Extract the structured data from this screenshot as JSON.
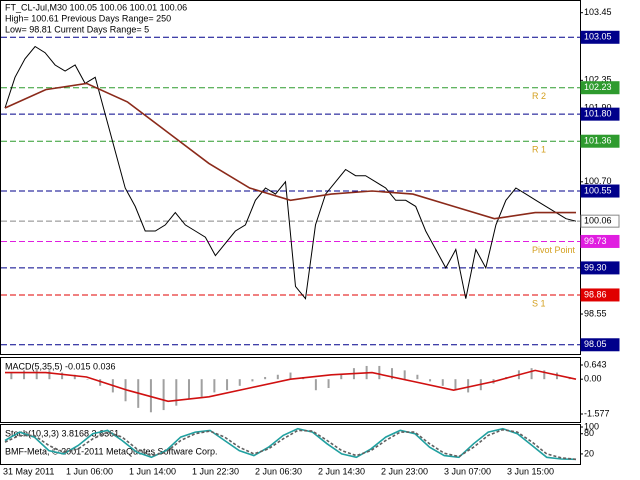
{
  "chart_data": [
    {
      "type": "line",
      "title": "FT_CL-Jul,M30  100.05 100.06 100.01 100.06",
      "subtitles": [
        "High= 100.61   Previous Days Range= 250",
        "Low= 98.81   Current Days Range= 5"
      ],
      "ylim": [
        97.9,
        103.64
      ],
      "yticks": [
        103.45,
        102.35,
        {
          "value": 101.9,
          "label": "101.90"
        },
        {
          "value": 100.7,
          "label": "100.70"
        },
        98.55
      ],
      "levels": [
        {
          "value": 103.05,
          "color": "#00008b"
        },
        {
          "value": 102.23,
          "color": "#2e9b2e",
          "name": "R 2"
        },
        {
          "value": 101.8,
          "label": "101.80",
          "color": "#00008b"
        },
        {
          "value": 101.36,
          "color": "#2e9b2e",
          "name": "R 1"
        },
        {
          "value": 100.55,
          "color": "#00008b"
        },
        {
          "value": 100.06,
          "color": "#ffffff",
          "text_color": "#000000"
        },
        {
          "value": 99.73,
          "color": "#e01ee0",
          "name": "Pivot Point"
        },
        {
          "value": 99.3,
          "label": "99.30",
          "color": "#00008b"
        },
        {
          "value": 98.86,
          "color": "#e00000",
          "name": "S 1"
        },
        {
          "value": 98.05,
          "color": "#00008b"
        }
      ],
      "series": [
        {
          "color": "#000000",
          "values": [
            101.9,
            102.4,
            102.7,
            102.9,
            102.8,
            102.6,
            102.5,
            102.6,
            102.3,
            102.4,
            101.8,
            101.2,
            100.6,
            100.3,
            99.9,
            99.9,
            100.0,
            100.2,
            100.0,
            99.9,
            99.8,
            99.5,
            99.7,
            99.9,
            100.0,
            100.4,
            100.6,
            100.5,
            100.7,
            99.0,
            98.8,
            100.0,
            100.5,
            100.7,
            100.9,
            100.8,
            100.8,
            100.7,
            100.6,
            100.4,
            100.4,
            100.3,
            99.9,
            99.6,
            99.3,
            99.6,
            98.8,
            99.6,
            99.3,
            100.0,
            100.4,
            100.6,
            100.5,
            100.4,
            100.3,
            100.2,
            100.1,
            100.06
          ]
        },
        {
          "color": "#8b2a1a",
          "values": [
            101.9,
            102.2,
            102.3,
            102.0,
            101.5,
            101.0,
            100.6,
            100.4,
            100.5,
            100.55,
            100.5,
            100.3,
            100.1,
            100.2,
            100.2
          ]
        }
      ]
    },
    {
      "type": "macd",
      "title": "MACD(5,35,5) -0.015 0.036",
      "ylim": [
        -1.94,
        0.96
      ],
      "yticks": [
        0.643,
        {
          "value": 0,
          "label": "0.00"
        },
        -1.577
      ],
      "series": [
        {
          "type": "bar",
          "color": "#a0a0a0",
          "values": [
            0.3,
            0.4,
            0.5,
            0.4,
            0.3,
            0.2,
            0.0,
            -0.3,
            -0.6,
            -1.0,
            -1.3,
            -1.5,
            -1.4,
            -1.2,
            -0.9,
            -0.8,
            -0.6,
            -0.5,
            -0.3,
            -0.1,
            0.1,
            0.2,
            0.3,
            0.1,
            -0.5,
            -0.4,
            0.2,
            0.5,
            0.6,
            0.6,
            0.5,
            0.4,
            0.2,
            -0.1,
            -0.3,
            -0.5,
            -0.6,
            -0.5,
            -0.2,
            0.1,
            0.4,
            0.5,
            0.4,
            0.3,
            0.1
          ]
        },
        {
          "type": "line",
          "color": "#d01010",
          "values": [
            0.3,
            0.3,
            0.1,
            -0.5,
            -1.0,
            -0.8,
            -0.4,
            0.0,
            0.2,
            0.3,
            -0.1,
            -0.5,
            -0.1,
            0.4,
            0.0
          ]
        }
      ]
    },
    {
      "type": "line",
      "title": "Stoch(10,3,3) 3.8168 3.6361",
      "annotation": "BMF-Meta, © 2001-2011 MetaQuotes Software Corp.",
      "ylim": [
        -10,
        106
      ],
      "yticks": [
        100,
        80,
        20
      ],
      "x_labels": [
        "31 May 2011",
        "1 Jun 06:00",
        "1 Jun 14:00",
        "1 Jun 22:30",
        "2 Jun 06:30",
        "2 Jun 14:30",
        "2 Jun 23:00",
        "3 Jun 07:00",
        "3 Jun 15:00"
      ],
      "series": [
        {
          "color": "#20a0a0",
          "values": [
            60,
            85,
            70,
            30,
            20,
            45,
            80,
            90,
            60,
            25,
            10,
            30,
            70,
            85,
            90,
            60,
            30,
            15,
            40,
            75,
            95,
            85,
            50,
            20,
            10,
            35,
            70,
            90,
            80,
            40,
            15,
            10,
            50,
            85,
            95,
            80,
            45,
            10,
            5,
            4
          ]
        },
        {
          "color": "#606060",
          "dashed": true,
          "values": [
            55,
            75,
            75,
            45,
            25,
            35,
            65,
            85,
            70,
            35,
            15,
            25,
            60,
            80,
            88,
            70,
            40,
            20,
            35,
            65,
            90,
            88,
            60,
            30,
            15,
            30,
            60,
            85,
            85,
            50,
            22,
            12,
            40,
            75,
            92,
            85,
            55,
            20,
            8,
            4
          ]
        }
      ]
    }
  ]
}
